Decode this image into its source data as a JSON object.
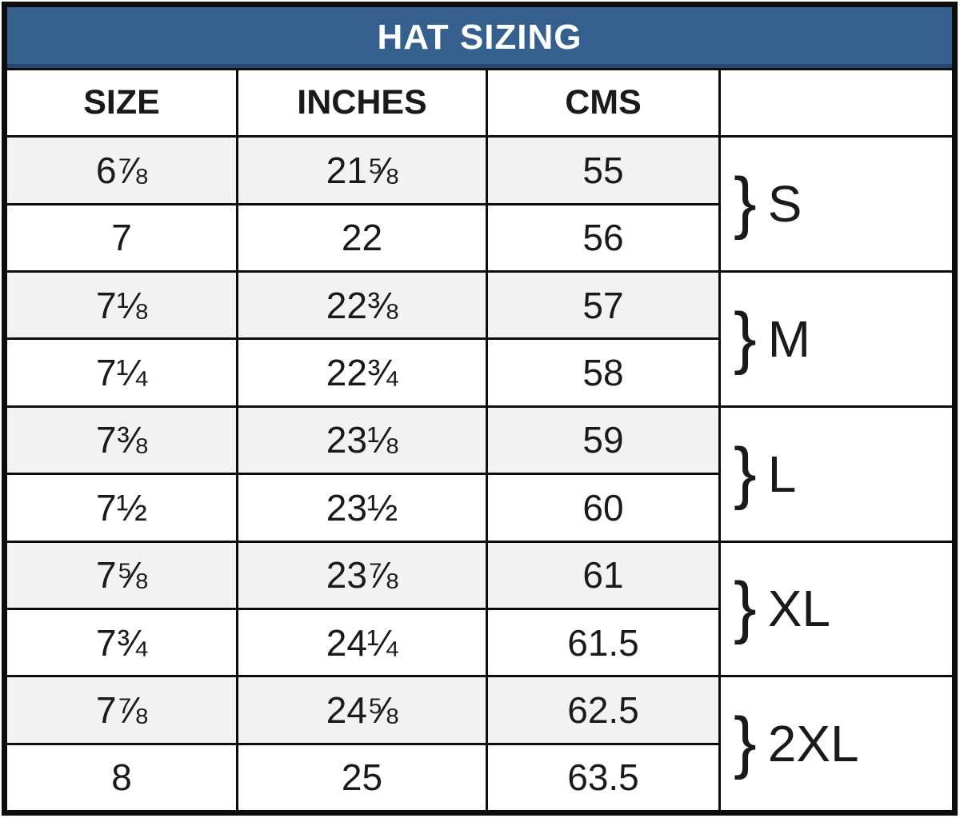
{
  "title": "HAT SIZING",
  "chart_data": {
    "type": "table",
    "title": "HAT SIZING",
    "columns": [
      "SIZE",
      "INCHES",
      "CMS",
      ""
    ],
    "rows": [
      {
        "size": "6⅞",
        "inches": "21⅝",
        "cms": "55",
        "group": "S"
      },
      {
        "size": "7",
        "inches": "22",
        "cms": "56",
        "group": "S"
      },
      {
        "size": "7⅛",
        "inches": "22⅜",
        "cms": "57",
        "group": "M"
      },
      {
        "size": "7¼",
        "inches": "22¾",
        "cms": "58",
        "group": "M"
      },
      {
        "size": "7⅜",
        "inches": "23⅛",
        "cms": "59",
        "group": "L"
      },
      {
        "size": "7½",
        "inches": "23½",
        "cms": "60",
        "group": "L"
      },
      {
        "size": "7⅝",
        "inches": "23⅞",
        "cms": "61",
        "group": "XL"
      },
      {
        "size": "7¾",
        "inches": "24¼",
        "cms": "61.5",
        "group": "XL"
      },
      {
        "size": "7⅞",
        "inches": "24⅝",
        "cms": "62.5",
        "group": "2XL"
      },
      {
        "size": "8",
        "inches": "25",
        "cms": "63.5",
        "group": "2XL"
      }
    ],
    "groups": [
      {
        "brace": "}",
        "label": "S"
      },
      {
        "brace": "}",
        "label": "M"
      },
      {
        "brace": "}",
        "label": "L"
      },
      {
        "brace": "}",
        "label": "XL"
      },
      {
        "brace": "}",
        "label": "2XL"
      }
    ],
    "layout_hints": {
      "grouped_row_pairs": true,
      "alternating_row_shading": "odd rows shaded"
    }
  },
  "colors": {
    "title_bar_bg": "#35608E",
    "title_text": "#FFFFFF",
    "alt_row_bg": "#F2F2F2",
    "row_bg": "#FFFFFF",
    "border": "#0D0D0D",
    "text": "#1A1A1A"
  }
}
